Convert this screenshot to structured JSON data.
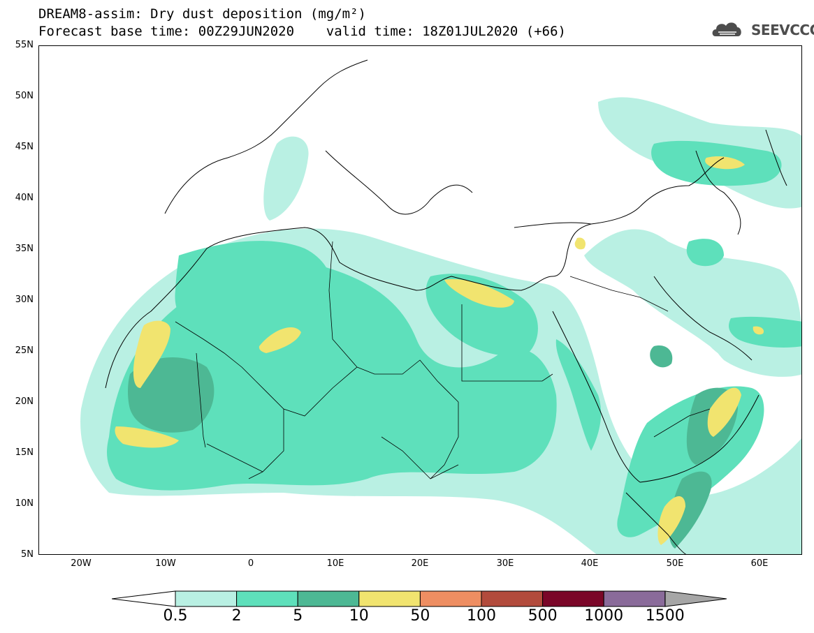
{
  "title": {
    "line1": "DREAM8-assim: Dry dust deposition (mg/m²)",
    "line2": "Forecast base time: 00Z29JUN2020    valid time: 18Z01JUL2020 (+66)"
  },
  "logo": {
    "text": "SEEVCCC",
    "icon": "cloud-icon"
  },
  "map": {
    "lon_range": [
      -25,
      65
    ],
    "lat_range": [
      5,
      55
    ],
    "lat_labels": [
      "55N",
      "50N",
      "45N",
      "40N",
      "35N",
      "30N",
      "25N",
      "20N",
      "15N",
      "10N",
      "5N"
    ],
    "lon_labels": [
      "20W",
      "10W",
      "0",
      "10E",
      "20E",
      "30E",
      "40E",
      "50E",
      "60E"
    ]
  },
  "legend": {
    "labels": [
      "0.5",
      "2",
      "5",
      "10",
      "50",
      "100",
      "500",
      "1000",
      "1500"
    ],
    "colors": [
      "#b9f0e3",
      "#5ee0bb",
      "#4db894",
      "#f1e46f",
      "#ee8e62",
      "#b24b3c",
      "#7a0628",
      "#8a6b9a"
    ],
    "low_color": "#ffffff",
    "high_color": "#a6a6a6"
  }
}
